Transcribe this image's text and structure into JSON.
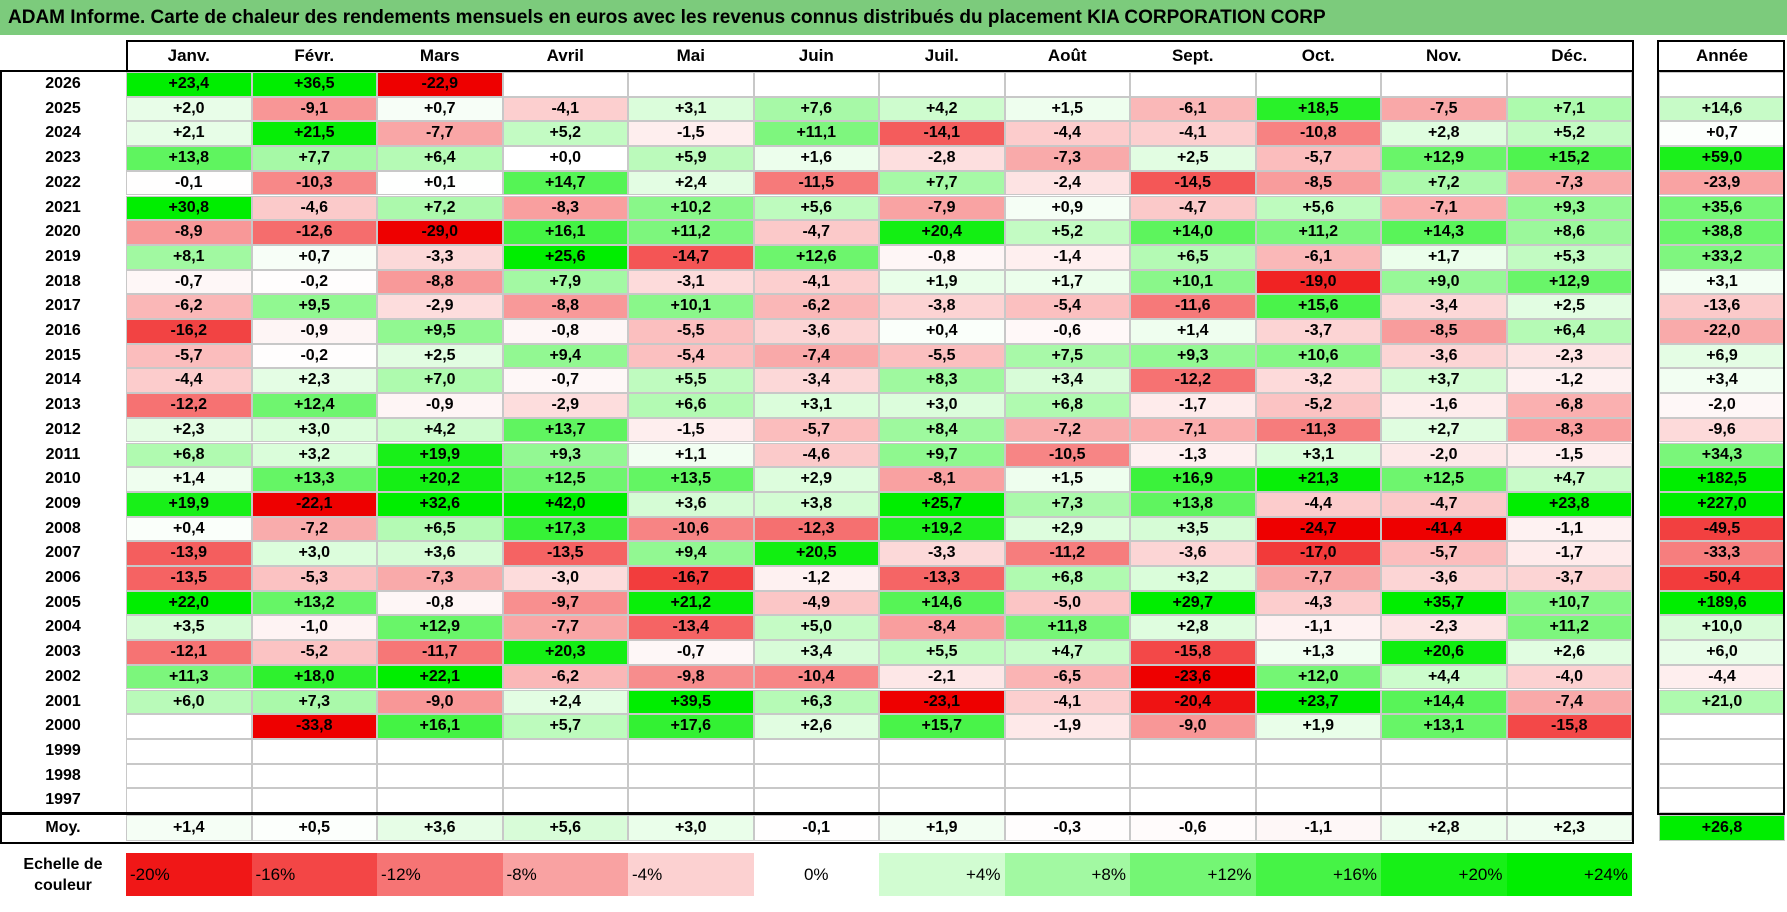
{
  "title": "ADAM Informe. Carte de chaleur des rendements mensuels en euros avec les revenus connus distribués du placement KIA CORPORATION CORP",
  "months": [
    "Janv.",
    "Févr.",
    "Mars",
    "Avril",
    "Mai",
    "Juin",
    "Juil.",
    "Août",
    "Sept.",
    "Oct.",
    "Nov.",
    "Déc."
  ],
  "year_header": "Année",
  "avg_label": "Moy.",
  "legend_title_line1": "Echelle de",
  "legend_title_line2": "couleur",
  "legend": [
    {
      "label": "-20%",
      "value": -20
    },
    {
      "label": "-16%",
      "value": -16
    },
    {
      "label": "-12%",
      "value": -12
    },
    {
      "label": "-8%",
      "value": -8
    },
    {
      "label": "-4%",
      "value": -4
    },
    {
      "label": "0%",
      "value": 0
    },
    {
      "label": "+4%",
      "value": 4
    },
    {
      "label": "+8%",
      "value": 8
    },
    {
      "label": "+12%",
      "value": 12
    },
    {
      "label": "+16%",
      "value": 16
    },
    {
      "label": "+20%",
      "value": 20
    },
    {
      "label": "+24%",
      "value": 24
    }
  ],
  "colors": {
    "title_bg": "#7CCB7C",
    "neg_max": "#EE0000",
    "pos_max": "#00EE00",
    "neutral": "#FFFFFF"
  },
  "chart_data": {
    "type": "heatmap",
    "title": "ADAM Informe. Carte de chaleur des rendements mensuels en euros avec les revenus connus distribués du placement KIA CORPORATION CORP",
    "columns": [
      "Janv.",
      "Févr.",
      "Mars",
      "Avril",
      "Mai",
      "Juin",
      "Juil.",
      "Août",
      "Sept.",
      "Oct.",
      "Nov.",
      "Déc.",
      "Année"
    ],
    "rows": [
      {
        "year": "2026",
        "values": [
          "+23,4",
          "+36,5",
          "-22,9",
          "",
          "",
          "",
          "",
          "",
          "",
          "",
          "",
          ""
        ],
        "annual": ""
      },
      {
        "year": "2025",
        "values": [
          "+2,0",
          "-9,1",
          "+0,7",
          "-4,1",
          "+3,1",
          "+7,6",
          "+4,2",
          "+1,5",
          "-6,1",
          "+18,5",
          "-7,5",
          "+7,1"
        ],
        "annual": "+14,6"
      },
      {
        "year": "2024",
        "values": [
          "+2,1",
          "+21,5",
          "-7,7",
          "+5,2",
          "-1,5",
          "+11,1",
          "-14,1",
          "-4,4",
          "-4,1",
          "-10,8",
          "+2,8",
          "+5,2"
        ],
        "annual": "+0,7"
      },
      {
        "year": "2023",
        "values": [
          "+13,8",
          "+7,7",
          "+6,4",
          "+0,0",
          "+5,9",
          "+1,6",
          "-2,8",
          "-7,3",
          "+2,5",
          "-5,7",
          "+12,9",
          "+15,2"
        ],
        "annual": "+59,0"
      },
      {
        "year": "2022",
        "values": [
          "-0,1",
          "-10,3",
          "+0,1",
          "+14,7",
          "+2,4",
          "-11,5",
          "+7,7",
          "-2,4",
          "-14,5",
          "-8,5",
          "+7,2",
          "-7,3"
        ],
        "annual": "-23,9"
      },
      {
        "year": "2021",
        "values": [
          "+30,8",
          "-4,6",
          "+7,2",
          "-8,3",
          "+10,2",
          "+5,6",
          "-7,9",
          "+0,9",
          "-4,7",
          "+5,6",
          "-7,1",
          "+9,3"
        ],
        "annual": "+35,6"
      },
      {
        "year": "2020",
        "values": [
          "-8,9",
          "-12,6",
          "-29,0",
          "+16,1",
          "+11,2",
          "-4,7",
          "+20,4",
          "+5,2",
          "+14,0",
          "+11,2",
          "+14,3",
          "+8,6"
        ],
        "annual": "+38,8"
      },
      {
        "year": "2019",
        "values": [
          "+8,1",
          "+0,7",
          "-3,3",
          "+25,6",
          "-14,7",
          "+12,6",
          "-0,8",
          "-1,4",
          "+6,5",
          "-6,1",
          "+1,7",
          "+5,3"
        ],
        "annual": "+33,2"
      },
      {
        "year": "2018",
        "values": [
          "-0,7",
          "-0,2",
          "-8,8",
          "+7,9",
          "-3,1",
          "-4,1",
          "+1,9",
          "+1,7",
          "+10,1",
          "-19,0",
          "+9,0",
          "+12,9"
        ],
        "annual": "+3,1"
      },
      {
        "year": "2017",
        "values": [
          "-6,2",
          "+9,5",
          "-2,9",
          "-8,8",
          "+10,1",
          "-6,2",
          "-3,8",
          "-5,4",
          "-11,6",
          "+15,6",
          "-3,4",
          "+2,5"
        ],
        "annual": "-13,6"
      },
      {
        "year": "2016",
        "values": [
          "-16,2",
          "-0,9",
          "+9,5",
          "-0,8",
          "-5,5",
          "-3,6",
          "+0,4",
          "-0,6",
          "+1,4",
          "-3,7",
          "-8,5",
          "+6,4"
        ],
        "annual": "-22,0"
      },
      {
        "year": "2015",
        "values": [
          "-5,7",
          "-0,2",
          "+2,5",
          "+9,4",
          "-5,4",
          "-7,4",
          "-5,5",
          "+7,5",
          "+9,3",
          "+10,6",
          "-3,6",
          "-2,3"
        ],
        "annual": "+6,9"
      },
      {
        "year": "2014",
        "values": [
          "-4,4",
          "+2,3",
          "+7,0",
          "-0,7",
          "+5,5",
          "-3,4",
          "+8,3",
          "+3,4",
          "-12,2",
          "-3,2",
          "+3,7",
          "-1,2"
        ],
        "annual": "+3,4"
      },
      {
        "year": "2013",
        "values": [
          "-12,2",
          "+12,4",
          "-0,9",
          "-2,9",
          "+6,6",
          "+3,1",
          "+3,0",
          "+6,8",
          "-1,7",
          "-5,2",
          "-1,6",
          "-6,8"
        ],
        "annual": "-2,0"
      },
      {
        "year": "2012",
        "values": [
          "+2,3",
          "+3,0",
          "+4,2",
          "+13,7",
          "-1,5",
          "-5,7",
          "+8,4",
          "-7,2",
          "-7,1",
          "-11,3",
          "+2,7",
          "-8,3"
        ],
        "annual": "-9,6"
      },
      {
        "year": "2011",
        "values": [
          "+6,8",
          "+3,2",
          "+19,9",
          "+9,3",
          "+1,1",
          "-4,6",
          "+9,7",
          "-10,5",
          "-1,3",
          "+3,1",
          "-2,0",
          "-1,5"
        ],
        "annual": "+34,3"
      },
      {
        "year": "2010",
        "values": [
          "+1,4",
          "+13,3",
          "+20,2",
          "+12,5",
          "+13,5",
          "+2,9",
          "-8,1",
          "+1,5",
          "+16,9",
          "+21,3",
          "+12,5",
          "+4,7"
        ],
        "annual": "+182,5"
      },
      {
        "year": "2009",
        "values": [
          "+19,9",
          "-22,1",
          "+32,6",
          "+42,0",
          "+3,6",
          "+3,8",
          "+25,7",
          "+7,3",
          "+13,8",
          "-4,4",
          "-4,7",
          "+23,8"
        ],
        "annual": "+227,0"
      },
      {
        "year": "2008",
        "values": [
          "+0,4",
          "-7,2",
          "+6,5",
          "+17,3",
          "-10,6",
          "-12,3",
          "+19,2",
          "+2,9",
          "+3,5",
          "-24,7",
          "-41,4",
          "-1,1"
        ],
        "annual": "-49,5"
      },
      {
        "year": "2007",
        "values": [
          "-13,9",
          "+3,0",
          "+3,6",
          "-13,5",
          "+9,4",
          "+20,5",
          "-3,3",
          "-11,2",
          "-3,6",
          "-17,0",
          "-5,7",
          "-1,7"
        ],
        "annual": "-33,3"
      },
      {
        "year": "2006",
        "values": [
          "-13,5",
          "-5,3",
          "-7,3",
          "-3,0",
          "-16,7",
          "-1,2",
          "-13,3",
          "+6,8",
          "+3,2",
          "-7,7",
          "-3,6",
          "-3,7"
        ],
        "annual": "-50,4"
      },
      {
        "year": "2005",
        "values": [
          "+22,0",
          "+13,2",
          "-0,8",
          "-9,7",
          "+21,2",
          "-4,9",
          "+14,6",
          "-5,0",
          "+29,7",
          "-4,3",
          "+35,7",
          "+10,7"
        ],
        "annual": "+189,6"
      },
      {
        "year": "2004",
        "values": [
          "+3,5",
          "-1,0",
          "+12,9",
          "-7,7",
          "-13,4",
          "+5,0",
          "-8,4",
          "+11,8",
          "+2,8",
          "-1,1",
          "-2,3",
          "+11,2"
        ],
        "annual": "+10,0"
      },
      {
        "year": "2003",
        "values": [
          "-12,1",
          "-5,2",
          "-11,7",
          "+20,3",
          "-0,7",
          "+3,4",
          "+5,5",
          "+4,7",
          "-15,8",
          "+1,3",
          "+20,6",
          "+2,6"
        ],
        "annual": "+6,0"
      },
      {
        "year": "2002",
        "values": [
          "+11,3",
          "+18,0",
          "+22,1",
          "-6,2",
          "-9,8",
          "-10,4",
          "-2,1",
          "-6,5",
          "-23,6",
          "+12,0",
          "+4,4",
          "-4,0"
        ],
        "annual": "-4,4"
      },
      {
        "year": "2001",
        "values": [
          "+6,0",
          "+7,3",
          "-9,0",
          "+2,4",
          "+39,5",
          "+6,3",
          "-23,1",
          "-4,1",
          "-20,4",
          "+23,7",
          "+14,4",
          "-7,4"
        ],
        "annual": "+21,0"
      },
      {
        "year": "2000",
        "values": [
          "",
          "-33,8",
          "+16,1",
          "+5,7",
          "+17,6",
          "+2,6",
          "+15,7",
          "-1,9",
          "-9,0",
          "+1,9",
          "+13,1",
          "-15,8"
        ],
        "annual": ""
      },
      {
        "year": "1999",
        "values": [
          "",
          "",
          "",
          "",
          "",
          "",
          "",
          "",
          "",
          "",
          "",
          ""
        ],
        "annual": ""
      },
      {
        "year": "1998",
        "values": [
          "",
          "",
          "",
          "",
          "",
          "",
          "",
          "",
          "",
          "",
          "",
          ""
        ],
        "annual": ""
      },
      {
        "year": "1997",
        "values": [
          "",
          "",
          "",
          "",
          "",
          "",
          "",
          "",
          "",
          "",
          "",
          ""
        ],
        "annual": ""
      }
    ],
    "average": {
      "values": [
        "+1,4",
        "+0,5",
        "+3,6",
        "+5,6",
        "+3,0",
        "-0,1",
        "+1,9",
        "-0,3",
        "-0,6",
        "-1,1",
        "+2,8",
        "+2,3"
      ],
      "annual": "+26,8"
    }
  }
}
